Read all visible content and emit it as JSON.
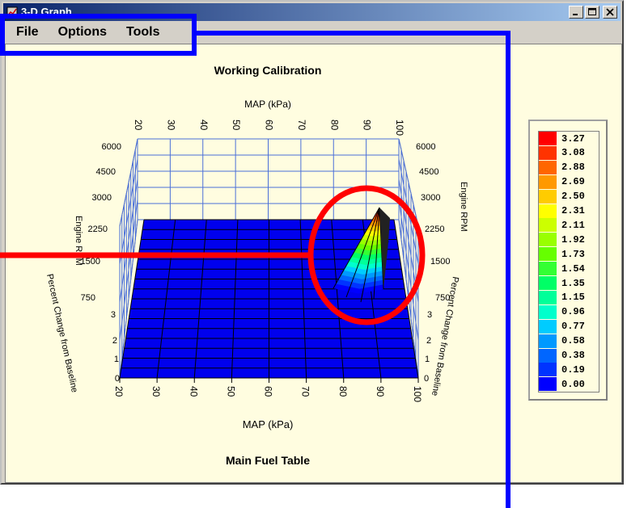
{
  "window": {
    "title": "3-D Graph",
    "minimize_label": "_",
    "maximize_label": "□",
    "close_label": "×"
  },
  "menu": {
    "items": [
      {
        "label": "File"
      },
      {
        "label": "Options"
      },
      {
        "label": "Tools"
      }
    ]
  },
  "graph": {
    "title": "Working Calibration",
    "subtitle": "Main Fuel Table",
    "top_axis_label": "MAP (kPa)",
    "bottom_axis_label": "MAP (kPa)",
    "map_ticks": [
      "20",
      "30",
      "40",
      "50",
      "60",
      "70",
      "80",
      "90",
      "100"
    ],
    "rpm_ticks": [
      "6000",
      "4500",
      "3000",
      "2250",
      "1500",
      "750"
    ],
    "left_rpm_label": "Engine RPM",
    "right_rpm_label": "Engine RPM",
    "pct_ticks": [
      "3",
      "2",
      "1",
      "0"
    ],
    "left_pct_label": "Percent Change from Baseline",
    "right_pct_label": "Percent Change from Baseline"
  },
  "legend": {
    "entries": [
      {
        "value": "3.27",
        "color": "#ff0000"
      },
      {
        "value": "3.08",
        "color": "#ff3300"
      },
      {
        "value": "2.88",
        "color": "#ff6600"
      },
      {
        "value": "2.69",
        "color": "#ff9900"
      },
      {
        "value": "2.50",
        "color": "#ffcc00"
      },
      {
        "value": "2.31",
        "color": "#ffff00"
      },
      {
        "value": "2.11",
        "color": "#ccff00"
      },
      {
        "value": "1.92",
        "color": "#99ff00"
      },
      {
        "value": "1.73",
        "color": "#66ff00"
      },
      {
        "value": "1.54",
        "color": "#33ff33"
      },
      {
        "value": "1.35",
        "color": "#00ff66"
      },
      {
        "value": "1.15",
        "color": "#00ff99"
      },
      {
        "value": "0.96",
        "color": "#00ffcc"
      },
      {
        "value": "0.77",
        "color": "#00ccff"
      },
      {
        "value": "0.58",
        "color": "#0099ff"
      },
      {
        "value": "0.38",
        "color": "#0066ff"
      },
      {
        "value": "0.19",
        "color": "#0033ff"
      },
      {
        "value": "0.00",
        "color": "#0000ff"
      }
    ]
  },
  "colors": {
    "surface_base": "#0000ee",
    "annotation_red": "#ff0000",
    "annotation_blue": "#0000ff",
    "grid": "#4a6fd8"
  }
}
